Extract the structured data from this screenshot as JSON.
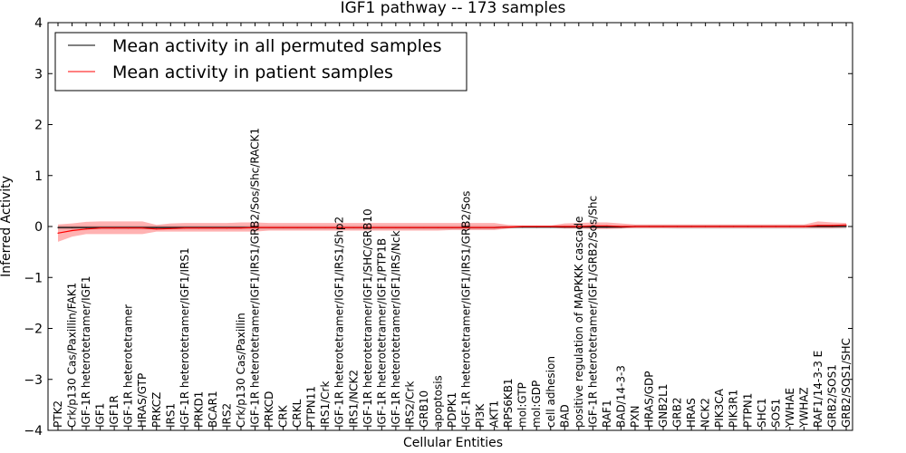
{
  "chart_data": {
    "type": "line",
    "title": "IGF1 pathway -- 173 samples",
    "xlabel": "Cellular Entities",
    "ylabel": "Inferred Activity",
    "ylim": [
      -4,
      4
    ],
    "yticks": [
      -4,
      -3,
      -2,
      -1,
      0,
      1,
      2,
      3,
      4
    ],
    "grid": false,
    "legend": {
      "position": "top-left"
    },
    "categories": [
      "PTK2",
      "Crk/p130 Cas/Paxillin/FAK1",
      "IGF-1R heterotetramer/IGF1",
      "IGF1",
      "IGF1R",
      "IGF-1R heterotetramer",
      "HRAS/GTP",
      "PRKCZ",
      "IRS1",
      "IGF-1R heterotetramer/IGF1/IRS1",
      "PRKD1",
      "BCAR1",
      "IRS2",
      "Crk/p130 Cas/Paxillin",
      "IGF-1R heterotetramer/IGF1/IRS1/GRB2/Sos/Shc/RACK1",
      "PRKCD",
      "CRK",
      "CRKL",
      "PTPN11",
      "IRS1/Crk",
      "IGF-1R heterotetramer/IGF1/IRS1/Shp2",
      "IRS1/NCK2",
      "IGF-1R heterotetramer/IGF1/SHC/GRB10",
      "IGF-1R heterotetramer/IGF1/PTP1B",
      "IGF-1R heterotetramer/IGF1/IRS/Nck",
      "IRS2/Crk",
      "GRB10",
      "apoptosis",
      "PDPK1",
      "IGF-1R heterotetramer/IGF1/IRS1/GRB2/Sos",
      "PI3K",
      "AKT1",
      "RPS6KB1",
      "mol:GTP",
      "mol:GDP",
      "cell adhesion",
      "BAD",
      "positive regulation of MAPKKK cascade",
      "IGF-1R heterotetramer/IGF1/GRB2/Sos/Shc",
      "RAF1",
      "BAD/14-3-3",
      "PXN",
      "HRAS/GDP",
      "GNB2L1",
      "GRB2",
      "HRAS",
      "NCK2",
      "PIK3CA",
      "PIK3R1",
      "PTPN1",
      "SHC1",
      "SOS1",
      "YWHAE",
      "YWHAZ",
      "RAF1/14-3-3 E",
      "GRB2/SOS1",
      "GRB2/SOS1/SHC"
    ],
    "series": [
      {
        "name": "Mean activity in all permuted samples",
        "color": "#000000",
        "values": [
          -0.02,
          -0.02,
          -0.02,
          -0.02,
          -0.02,
          -0.02,
          -0.02,
          -0.02,
          -0.02,
          -0.02,
          -0.02,
          -0.02,
          -0.02,
          -0.02,
          -0.02,
          -0.02,
          -0.02,
          -0.02,
          -0.02,
          -0.02,
          -0.02,
          -0.02,
          -0.02,
          -0.02,
          -0.02,
          -0.02,
          -0.02,
          -0.02,
          -0.02,
          -0.02,
          -0.02,
          -0.02,
          -0.01,
          -0.01,
          -0.01,
          -0.01,
          -0.01,
          -0.01,
          -0.01,
          -0.01,
          -0.01,
          0.0,
          0.0,
          0.0,
          0.0,
          0.0,
          0.0,
          0.0,
          0.0,
          0.0,
          0.0,
          0.0,
          0.0,
          0.0,
          0.0,
          0.0,
          0.0
        ],
        "band_lower": [
          -0.06,
          -0.06,
          -0.06,
          -0.06,
          -0.06,
          -0.06,
          -0.06,
          -0.06,
          -0.06,
          -0.06,
          -0.06,
          -0.06,
          -0.06,
          -0.06,
          -0.06,
          -0.06,
          -0.06,
          -0.06,
          -0.06,
          -0.06,
          -0.06,
          -0.06,
          -0.06,
          -0.06,
          -0.06,
          -0.06,
          -0.06,
          -0.06,
          -0.06,
          -0.06,
          -0.06,
          -0.06,
          -0.04,
          -0.04,
          -0.04,
          -0.04,
          -0.04,
          -0.04,
          -0.04,
          -0.04,
          -0.04,
          -0.04,
          -0.04,
          -0.04,
          -0.05,
          -0.05,
          -0.05,
          -0.05,
          -0.05,
          -0.05,
          -0.05,
          -0.05,
          -0.05,
          -0.05,
          -0.05,
          -0.05,
          -0.05
        ],
        "band_upper": [
          0.02,
          0.02,
          0.02,
          0.02,
          0.02,
          0.02,
          0.02,
          0.02,
          0.02,
          0.02,
          0.02,
          0.02,
          0.02,
          0.02,
          0.02,
          0.02,
          0.02,
          0.02,
          0.02,
          0.02,
          0.02,
          0.02,
          0.02,
          0.02,
          0.02,
          0.02,
          0.02,
          0.02,
          0.02,
          0.02,
          0.02,
          0.02,
          0.02,
          0.02,
          0.02,
          0.02,
          0.02,
          0.02,
          0.02,
          0.02,
          0.02,
          0.03,
          0.03,
          0.03,
          0.03,
          0.03,
          0.03,
          0.03,
          0.03,
          0.03,
          0.03,
          0.03,
          0.03,
          0.03,
          0.03,
          0.03,
          0.03
        ]
      },
      {
        "name": "Mean activity in patient samples",
        "color": "#ff0000",
        "values": [
          -0.13,
          -0.08,
          -0.05,
          -0.03,
          -0.03,
          -0.03,
          -0.03,
          -0.05,
          -0.04,
          -0.03,
          -0.03,
          -0.03,
          -0.03,
          -0.03,
          -0.02,
          -0.02,
          -0.02,
          -0.02,
          -0.02,
          -0.02,
          -0.02,
          -0.02,
          -0.02,
          -0.02,
          -0.02,
          -0.02,
          -0.02,
          -0.02,
          -0.02,
          -0.02,
          -0.02,
          -0.02,
          -0.01,
          0.0,
          0.0,
          0.0,
          0.0,
          0.0,
          0.01,
          0.01,
          0.0,
          0.0,
          0.0,
          0.0,
          0.0,
          0.0,
          0.0,
          0.0,
          0.0,
          0.0,
          0.0,
          0.0,
          0.0,
          0.0,
          0.02,
          0.02,
          0.03
        ],
        "band_lower": [
          -0.3,
          -0.2,
          -0.15,
          -0.15,
          -0.15,
          -0.15,
          -0.15,
          -0.1,
          -0.1,
          -0.1,
          -0.1,
          -0.1,
          -0.1,
          -0.1,
          -0.1,
          -0.08,
          -0.08,
          -0.08,
          -0.08,
          -0.08,
          -0.08,
          -0.08,
          -0.08,
          -0.08,
          -0.08,
          -0.08,
          -0.08,
          -0.08,
          -0.07,
          -0.07,
          -0.07,
          -0.07,
          -0.04,
          -0.02,
          -0.02,
          -0.02,
          -0.04,
          -0.04,
          -0.05,
          -0.05,
          -0.04,
          -0.03,
          -0.03,
          -0.03,
          -0.03,
          -0.03,
          -0.03,
          -0.03,
          -0.03,
          -0.03,
          -0.03,
          -0.03,
          -0.03,
          -0.03,
          -0.03,
          -0.03,
          -0.02
        ],
        "band_upper": [
          0.04,
          0.06,
          0.09,
          0.1,
          0.1,
          0.1,
          0.1,
          0.03,
          0.06,
          0.07,
          0.07,
          0.07,
          0.07,
          0.08,
          0.08,
          0.07,
          0.07,
          0.07,
          0.07,
          0.07,
          0.07,
          0.07,
          0.07,
          0.07,
          0.07,
          0.07,
          0.07,
          0.07,
          0.07,
          0.07,
          0.07,
          0.07,
          0.03,
          0.02,
          0.02,
          0.02,
          0.06,
          0.07,
          0.08,
          0.08,
          0.06,
          0.04,
          0.04,
          0.04,
          0.04,
          0.04,
          0.04,
          0.04,
          0.04,
          0.04,
          0.04,
          0.04,
          0.04,
          0.04,
          0.1,
          0.08,
          0.07
        ]
      }
    ]
  }
}
